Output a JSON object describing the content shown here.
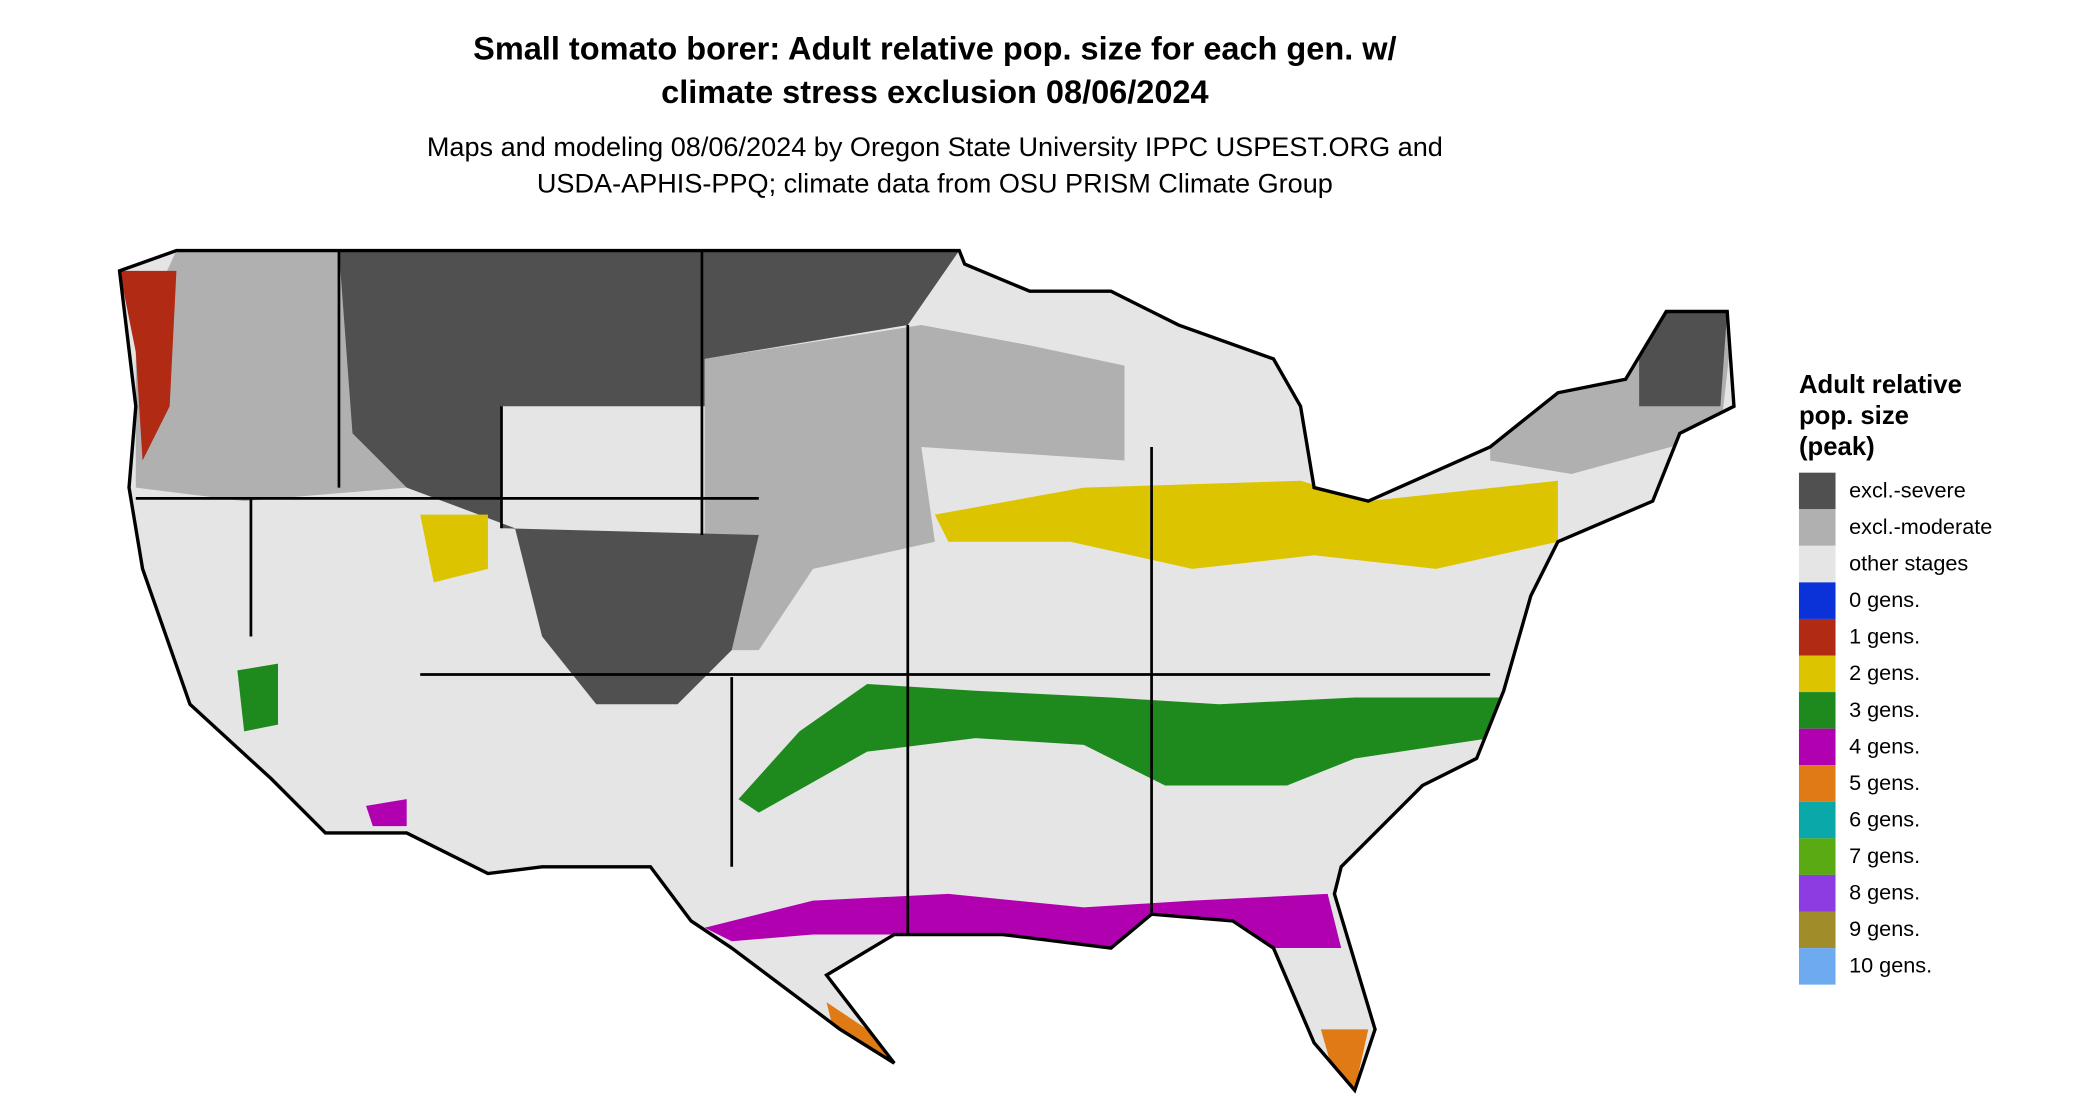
{
  "header": {
    "title": [
      "Small tomato borer: Adult relative pop. size for each gen. w/",
      "climate stress exclusion 08/06/2024"
    ],
    "subtitle": [
      "Maps and modeling 08/06/2024 by Oregon State University IPPC USPEST.ORG and",
      "USDA-APHIS-PPQ; climate data from OSU PRISM Climate Group"
    ]
  },
  "legend": {
    "title": [
      "Adult relative",
      "pop. size",
      "(peak)"
    ],
    "items": [
      {
        "label": "excl.-severe",
        "color": "#505050"
      },
      {
        "label": "excl.-moderate",
        "color": "#b0b0b0"
      },
      {
        "label": "other stages",
        "color": "#e5e5e5"
      },
      {
        "label": "0 gens.",
        "color": "#0a32d8"
      },
      {
        "label": "1 gens.",
        "color": "#b02a14"
      },
      {
        "label": "2 gens.",
        "color": "#dcc400"
      },
      {
        "label": "3 gens.",
        "color": "#1e8a1e"
      },
      {
        "label": "4 gens.",
        "color": "#b000b0"
      },
      {
        "label": "5 gens.",
        "color": "#e07a14"
      },
      {
        "label": "6 gens.",
        "color": "#0aa8a8"
      },
      {
        "label": "7 gens.",
        "color": "#5aaa14"
      },
      {
        "label": "8 gens.",
        "color": "#8c3ce0"
      },
      {
        "label": "9 gens.",
        "color": "#a08c28"
      },
      {
        "label": "10 gens.",
        "color": "#6eaaf0"
      }
    ]
  }
}
